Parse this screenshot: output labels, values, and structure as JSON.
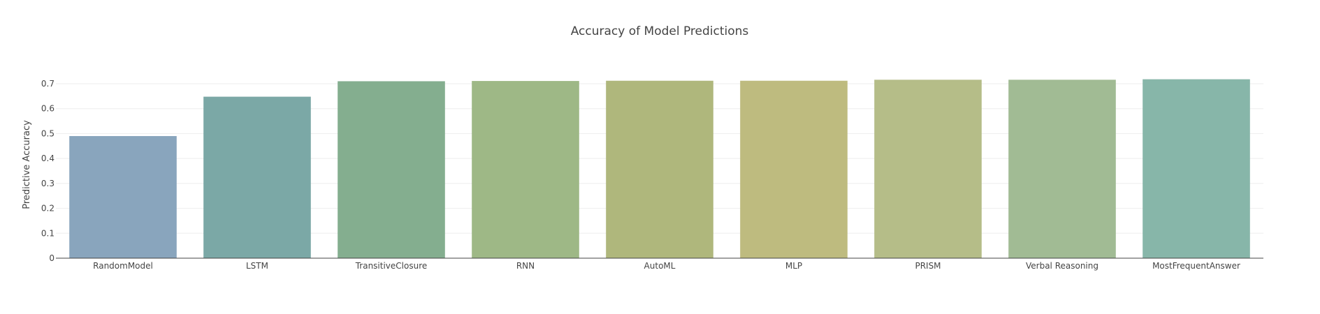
{
  "chart_data": {
    "type": "bar",
    "title": "Accuracy of Model Predictions",
    "xlabel": "",
    "ylabel": "Predictive Accuracy",
    "ylim": [
      0,
      0.7
    ],
    "yticks": [
      0,
      0.1,
      0.2,
      0.3,
      0.4,
      0.5,
      0.6,
      0.7
    ],
    "ytick_labels": [
      "0",
      "0.1",
      "0.2",
      "0.3",
      "0.4",
      "0.5",
      "0.6",
      "0.7"
    ],
    "grid": true,
    "legend": "none",
    "categories": [
      "RandomModel",
      "LSTM",
      "TransitiveClosure",
      "RNN",
      "AutoML",
      "MLP",
      "PRISM",
      "Verbal Reasoning",
      "MostFrequentAnswer"
    ],
    "values": [
      0.49,
      0.648,
      0.71,
      0.711,
      0.712,
      0.712,
      0.716,
      0.716,
      0.718
    ],
    "colors": [
      "#89a5bd",
      "#7ba8a6",
      "#84ae8f",
      "#9eb886",
      "#afb77c",
      "#bebb7f",
      "#b5bd88",
      "#a1bb94",
      "#87b6a9"
    ]
  }
}
